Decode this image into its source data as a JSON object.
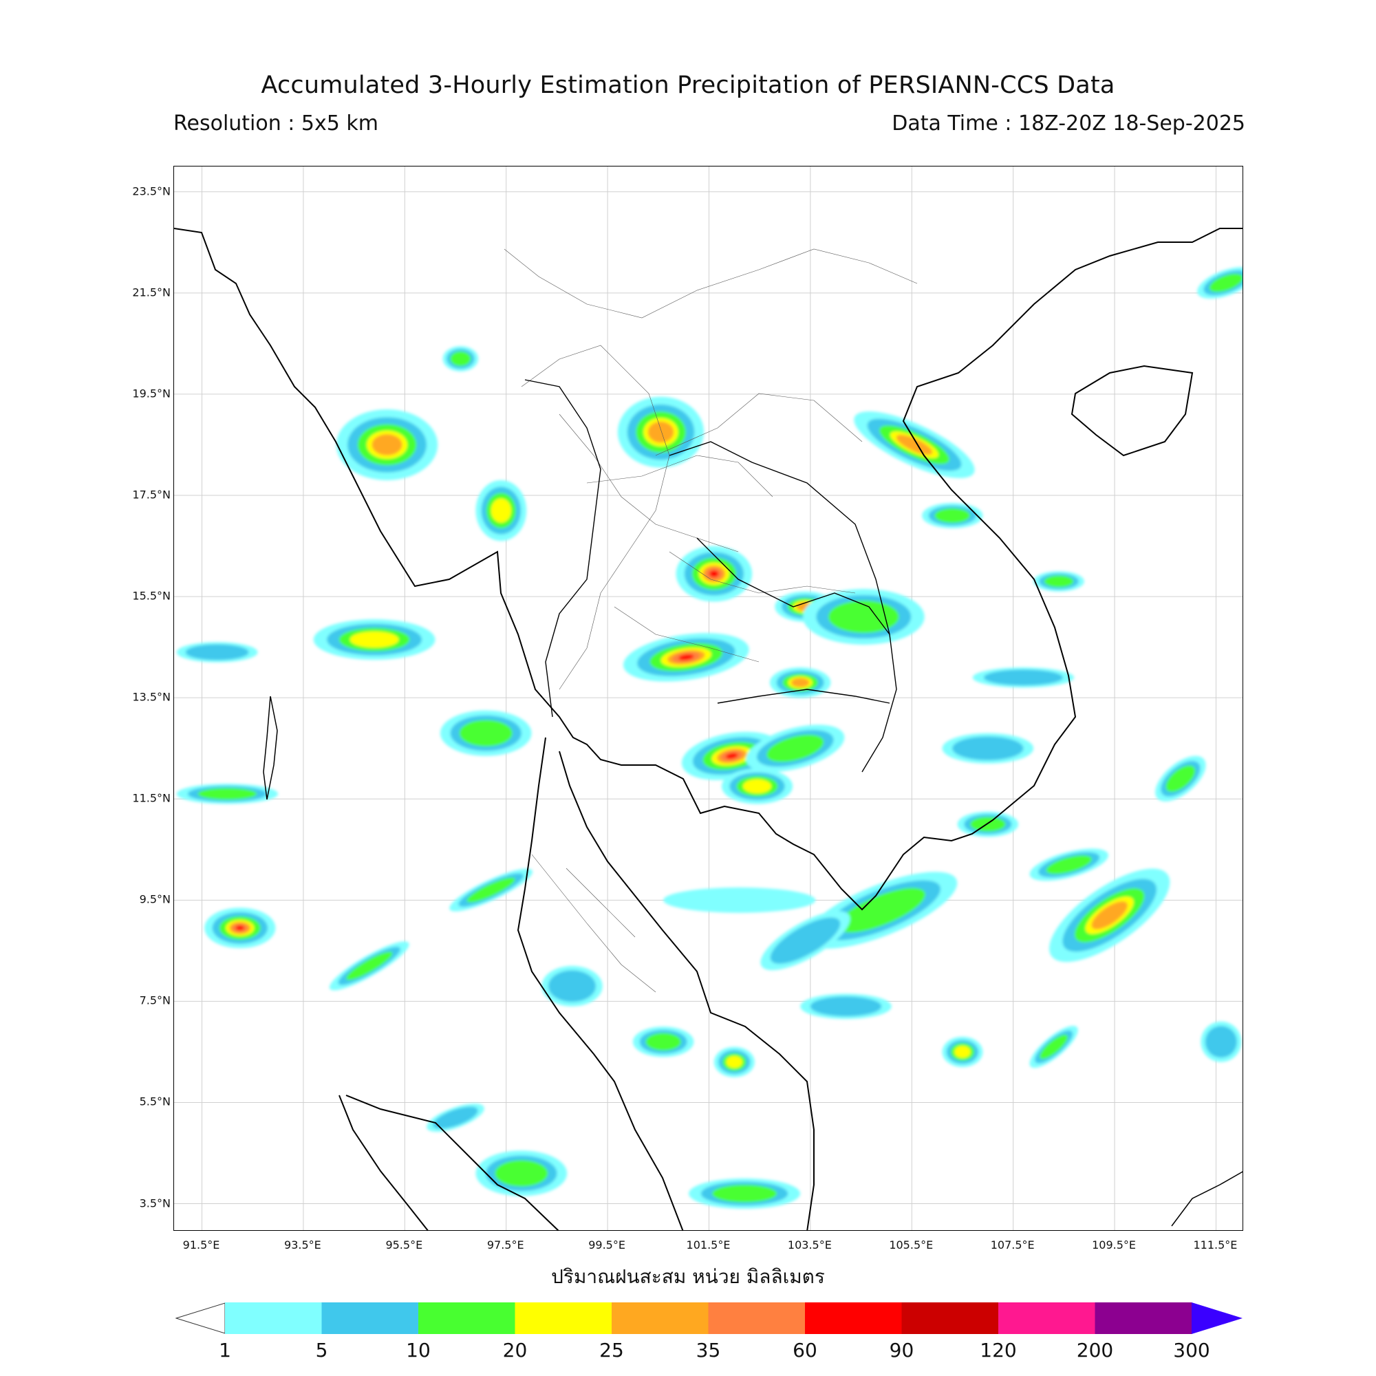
{
  "title": "Accumulated 3-Hourly Estimation Precipitation of PERSIANN-CCS Data",
  "resolution": "Resolution : 5x5 km",
  "data_time": "Data Time : 18Z-20Z 18-Sep-2025",
  "unit_label": "ปริมาณฝนสะสม หน่วย มิลลิเมตร",
  "map_extent": {
    "lon_min": 90.95,
    "lon_max": 112.05,
    "lat_min": 2.95,
    "lat_max": 24.0
  },
  "lat_ticks": [
    {
      "value": 23.5,
      "label": "23.5°N"
    },
    {
      "value": 21.5,
      "label": "21.5°N"
    },
    {
      "value": 19.5,
      "label": "19.5°N"
    },
    {
      "value": 17.5,
      "label": "17.5°N"
    },
    {
      "value": 15.5,
      "label": "15.5°N"
    },
    {
      "value": 13.5,
      "label": "13.5°N"
    },
    {
      "value": 11.5,
      "label": "11.5°N"
    },
    {
      "value": 9.5,
      "label": "9.5°N"
    },
    {
      "value": 7.5,
      "label": "7.5°N"
    },
    {
      "value": 5.5,
      "label": "5.5°N"
    },
    {
      "value": 3.5,
      "label": "3.5°N"
    }
  ],
  "lon_ticks": [
    {
      "value": 91.5,
      "label": "91.5°E"
    },
    {
      "value": 93.5,
      "label": "93.5°E"
    },
    {
      "value": 95.5,
      "label": "95.5°E"
    },
    {
      "value": 97.5,
      "label": "97.5°E"
    },
    {
      "value": 99.5,
      "label": "99.5°E"
    },
    {
      "value": 101.5,
      "label": "101.5°E"
    },
    {
      "value": 103.5,
      "label": "103.5°E"
    },
    {
      "value": 105.5,
      "label": "105.5°E"
    },
    {
      "value": 107.5,
      "label": "107.5°E"
    },
    {
      "value": 109.5,
      "label": "109.5°E"
    },
    {
      "value": 111.5,
      "label": "111.5°E"
    }
  ],
  "colorbar": {
    "labels": [
      "1",
      "5",
      "10",
      "20",
      "25",
      "35",
      "60",
      "90",
      "120",
      "200",
      "300"
    ],
    "colors": [
      "#80ffff",
      "#40c8ec",
      "#48ff30",
      "#ffff00",
      "#ffa820",
      "#ff8040",
      "#ff0000",
      "#cc0000",
      "#ff1890",
      "#8c0090"
    ],
    "under_color": "#ffffff",
    "over_color": "#3a00ff"
  },
  "colors": {
    "lt": "#80ffff",
    "cy": "#40c8ec",
    "gr": "#48ff30",
    "ye": "#ffff00",
    "or": "#ffa820",
    "co": "#ff8040",
    "rd": "#ff0000"
  },
  "rain_areas": [
    {
      "lon": 101.05,
      "lat": 14.3,
      "rx": 1.25,
      "ry": 0.45,
      "rot": -8,
      "max": "rd"
    },
    {
      "lon": 101.95,
      "lat": 12.35,
      "rx": 1.0,
      "ry": 0.45,
      "rot": -10,
      "max": "rd"
    },
    {
      "lon": 101.6,
      "lat": 15.95,
      "rx": 0.75,
      "ry": 0.55,
      "rot": 0,
      "max": "rd"
    },
    {
      "lon": 100.55,
      "lat": 18.75,
      "rx": 0.85,
      "ry": 0.7,
      "rot": 0,
      "max": "or"
    },
    {
      "lon": 103.4,
      "lat": 15.3,
      "rx": 0.6,
      "ry": 0.3,
      "rot": 0,
      "max": "or"
    },
    {
      "lon": 103.3,
      "lat": 13.8,
      "rx": 0.6,
      "ry": 0.3,
      "rot": 0,
      "max": "or"
    },
    {
      "lon": 102.45,
      "lat": 11.75,
      "rx": 0.7,
      "ry": 0.35,
      "rot": 0,
      "max": "ye"
    },
    {
      "lon": 103.2,
      "lat": 12.5,
      "rx": 1.0,
      "ry": 0.4,
      "rot": -15,
      "max": "gr"
    },
    {
      "lon": 95.15,
      "lat": 18.5,
      "rx": 1.0,
      "ry": 0.7,
      "rot": 0,
      "max": "or"
    },
    {
      "lon": 97.4,
      "lat": 17.2,
      "rx": 0.5,
      "ry": 0.6,
      "rot": 0,
      "max": "ye"
    },
    {
      "lon": 94.9,
      "lat": 14.65,
      "rx": 1.2,
      "ry": 0.4,
      "rot": 0,
      "max": "ye"
    },
    {
      "lon": 97.1,
      "lat": 12.8,
      "rx": 0.9,
      "ry": 0.45,
      "rot": 0,
      "max": "gr"
    },
    {
      "lon": 109.4,
      "lat": 9.2,
      "rx": 1.4,
      "ry": 0.55,
      "rot": -35,
      "max": "or"
    },
    {
      "lon": 108.6,
      "lat": 10.2,
      "rx": 0.8,
      "ry": 0.25,
      "rot": -15,
      "max": "gr"
    },
    {
      "lon": 104.9,
      "lat": 9.3,
      "rx": 1.6,
      "ry": 0.5,
      "rot": -22,
      "max": "gr"
    },
    {
      "lon": 103.4,
      "lat": 8.7,
      "rx": 1.0,
      "ry": 0.35,
      "rot": -30,
      "max": "cy"
    },
    {
      "lon": 104.55,
      "lat": 15.1,
      "rx": 1.2,
      "ry": 0.55,
      "rot": 0,
      "max": "gr"
    },
    {
      "lon": 105.55,
      "lat": 18.5,
      "rx": 1.3,
      "ry": 0.4,
      "rot": 25,
      "max": "or"
    },
    {
      "lon": 106.3,
      "lat": 17.1,
      "rx": 0.6,
      "ry": 0.25,
      "rot": 0,
      "max": "gr"
    },
    {
      "lon": 97.8,
      "lat": 4.1,
      "rx": 0.9,
      "ry": 0.45,
      "rot": 0,
      "max": "gr"
    },
    {
      "lon": 102.2,
      "lat": 3.7,
      "rx": 1.1,
      "ry": 0.3,
      "rot": 0,
      "max": "gr"
    },
    {
      "lon": 92.25,
      "lat": 8.95,
      "rx": 0.7,
      "ry": 0.4,
      "rot": 0,
      "max": "rd"
    },
    {
      "lon": 94.8,
      "lat": 8.2,
      "rx": 0.9,
      "ry": 0.2,
      "rot": -30,
      "max": "gr"
    },
    {
      "lon": 97.2,
      "lat": 9.7,
      "rx": 0.9,
      "ry": 0.2,
      "rot": -25,
      "max": "gr"
    },
    {
      "lon": 92.0,
      "lat": 11.6,
      "rx": 1.0,
      "ry": 0.2,
      "rot": 0,
      "max": "gr"
    },
    {
      "lon": 91.8,
      "lat": 14.4,
      "rx": 0.8,
      "ry": 0.2,
      "rot": 0,
      "max": "cy"
    },
    {
      "lon": 110.8,
      "lat": 11.9,
      "rx": 0.6,
      "ry": 0.3,
      "rot": -40,
      "max": "gr"
    },
    {
      "lon": 106.5,
      "lat": 6.5,
      "rx": 0.4,
      "ry": 0.3,
      "rot": 0,
      "max": "ye"
    },
    {
      "lon": 108.3,
      "lat": 6.6,
      "rx": 0.6,
      "ry": 0.2,
      "rot": -40,
      "max": "gr"
    },
    {
      "lon": 102.0,
      "lat": 6.3,
      "rx": 0.4,
      "ry": 0.3,
      "rot": 0,
      "max": "ye"
    },
    {
      "lon": 100.6,
      "lat": 6.7,
      "rx": 0.6,
      "ry": 0.3,
      "rot": 0,
      "max": "gr"
    },
    {
      "lon": 96.6,
      "lat": 20.2,
      "rx": 0.35,
      "ry": 0.25,
      "rot": 0,
      "max": "gr"
    },
    {
      "lon": 102.1,
      "lat": 9.5,
      "rx": 1.5,
      "ry": 0.25,
      "rot": 0,
      "max": "lt"
    },
    {
      "lon": 104.2,
      "lat": 7.4,
      "rx": 0.9,
      "ry": 0.25,
      "rot": 0,
      "max": "cy"
    },
    {
      "lon": 107.0,
      "lat": 12.5,
      "rx": 0.9,
      "ry": 0.3,
      "rot": 0,
      "max": "cy"
    },
    {
      "lon": 107.0,
      "lat": 11.0,
      "rx": 0.6,
      "ry": 0.25,
      "rot": 0,
      "max": "gr"
    },
    {
      "lon": 111.7,
      "lat": 21.7,
      "rx": 0.6,
      "ry": 0.25,
      "rot": -20,
      "max": "gr"
    },
    {
      "lon": 108.4,
      "lat": 15.8,
      "rx": 0.5,
      "ry": 0.2,
      "rot": 0,
      "max": "gr"
    },
    {
      "lon": 107.7,
      "lat": 13.9,
      "rx": 1.0,
      "ry": 0.2,
      "rot": 0,
      "max": "cy"
    },
    {
      "lon": 98.8,
      "lat": 7.8,
      "rx": 0.6,
      "ry": 0.4,
      "rot": 0,
      "max": "cy"
    },
    {
      "lon": 96.5,
      "lat": 5.2,
      "rx": 0.6,
      "ry": 0.2,
      "rot": -20,
      "max": "cy"
    },
    {
      "lon": 111.6,
      "lat": 6.7,
      "rx": 0.4,
      "ry": 0.4,
      "rot": 0,
      "max": "cy"
    }
  ]
}
